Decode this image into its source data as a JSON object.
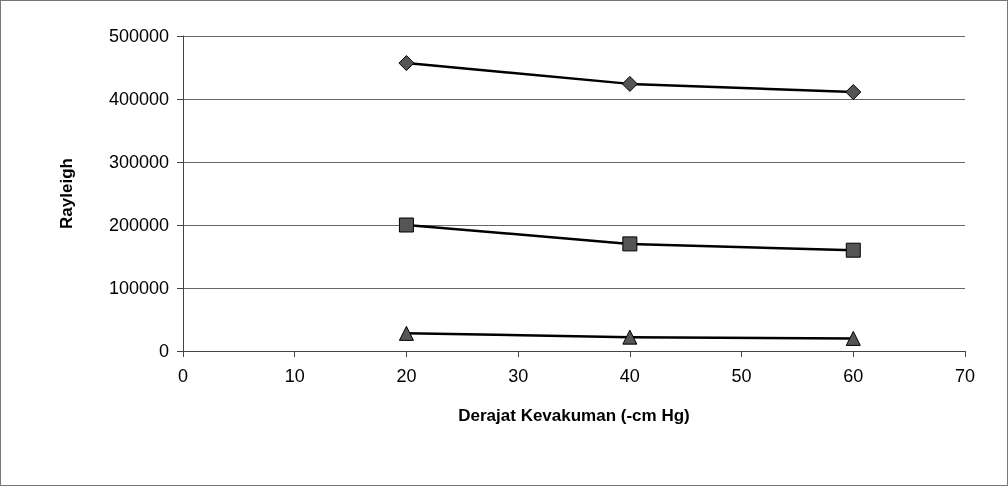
{
  "chart_data": {
    "type": "line",
    "xlabel": "Derajat Kevakuman (-cm Hg)",
    "ylabel": "Rayleigh",
    "x": [
      20,
      40,
      60
    ],
    "series": [
      {
        "color": "#000000",
        "marker": "diamond",
        "values": [
          457000,
          424000,
          411000
        ]
      },
      {
        "color": "#000000",
        "marker": "square",
        "values": [
          200000,
          170000,
          160000
        ]
      },
      {
        "color": "#000000",
        "marker": "triangle",
        "values": [
          28000,
          22000,
          20000
        ]
      }
    ],
    "xlim": [
      0,
      70
    ],
    "xticks": [
      0,
      10,
      20,
      30,
      40,
      50,
      60,
      70
    ],
    "ylim": [
      0,
      500000
    ],
    "yticks": [
      0,
      100000,
      200000,
      300000,
      400000,
      500000
    ],
    "grid": "y"
  }
}
